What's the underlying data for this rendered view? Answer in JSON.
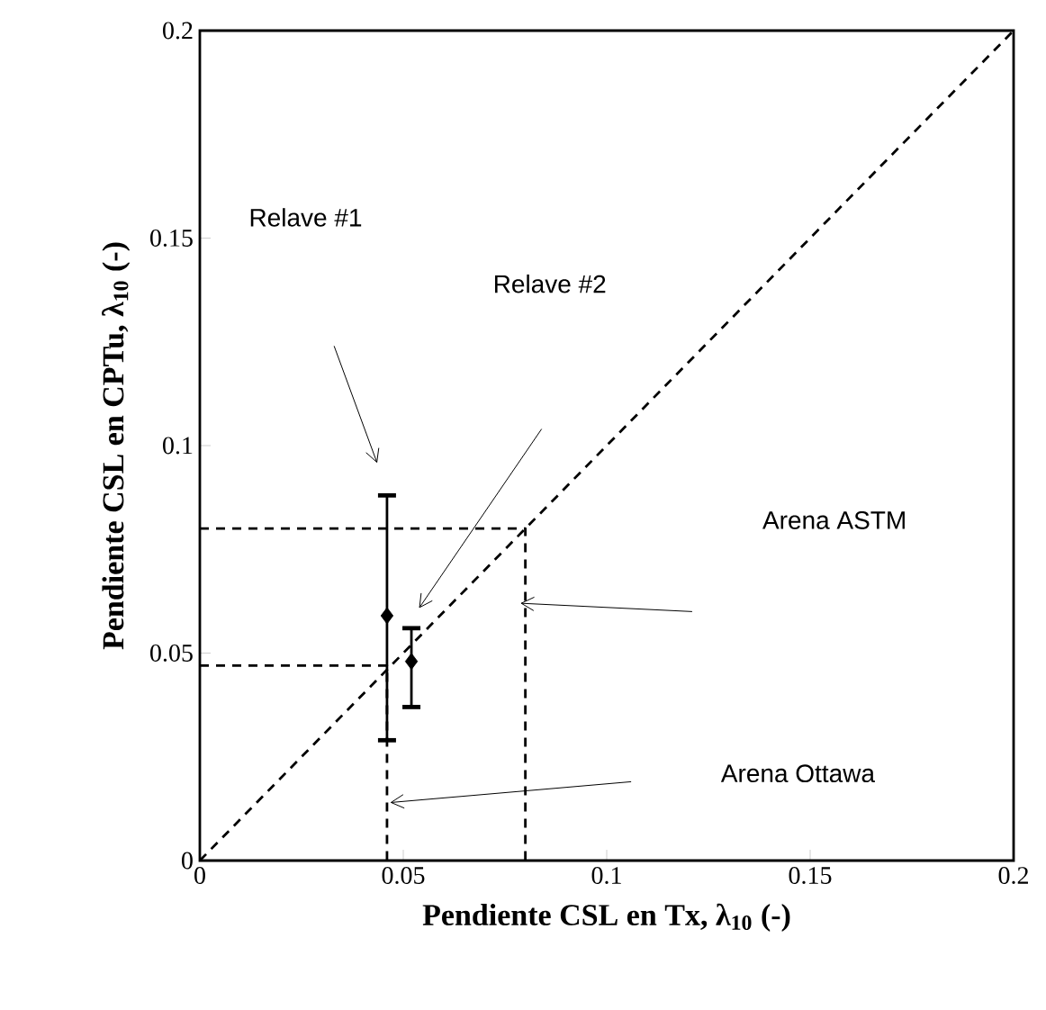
{
  "chart_data": {
    "type": "scatter",
    "xlabel": "Pendiente CSL en Tx, λ$_{10}$ (-)",
    "ylabel": "Pendiente CSL en CPTu, λ$_{10}$ (-)",
    "series": [
      {
        "color": "#000000",
        "marker": "diamond",
        "x": [
          0.046,
          0.052
        ],
        "values": [
          0.059,
          0.048
        ],
        "errors": [
          [
            0.029,
            0.088
          ],
          [
            0.037,
            0.056
          ]
        ]
      },
      {
        "type": "line",
        "color": "#000000",
        "line_style": "dashed",
        "marker": "none",
        "x": [
          0,
          0.2
        ],
        "values": [
          0,
          0.2
        ]
      },
      {
        "type": "line",
        "color": "#000000",
        "line_style": "dashed",
        "marker": "none",
        "x": [
          0,
          0.08,
          0.08
        ],
        "values": [
          0.08,
          0.08,
          0
        ]
      },
      {
        "type": "line",
        "color": "#000000",
        "line_style": "dashed",
        "marker": "none",
        "x": [
          0,
          0.046,
          0.046
        ],
        "values": [
          0.047,
          0.047,
          0
        ]
      }
    ],
    "xlim": [
      0,
      0.2
    ],
    "ylim": [
      0,
      0.2
    ],
    "xticks": [
      0,
      0.05,
      0.1,
      0.15,
      0.2
    ],
    "yticks": [
      0,
      0.05,
      0.1,
      0.15,
      0.2
    ],
    "annotations": [
      "Relave #1",
      "Relave #2",
      "Arena ASTM",
      "Arena Ottawa"
    ]
  }
}
